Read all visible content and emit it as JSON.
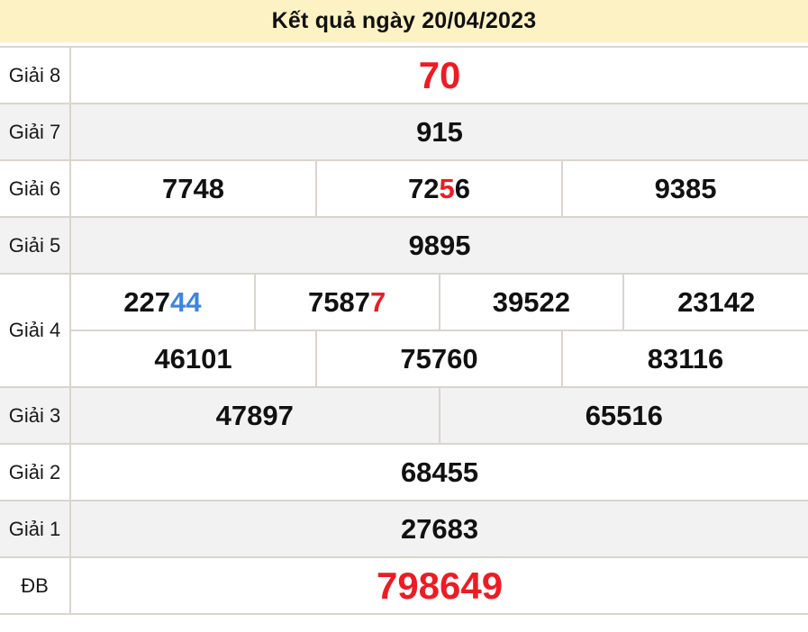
{
  "header": {
    "title": "Kết quả ngày 20/04/2023"
  },
  "colors": {
    "header_bg": "#fdf2c3",
    "row_shade_bg": "#f2f2f2",
    "border": "#d9d5ce",
    "red": "#ed1c24",
    "blue": "#3c85e0",
    "text": "#111111"
  },
  "table": {
    "label_column_header": "",
    "rows": [
      {
        "label": "Giải 8",
        "shade": false,
        "big": true,
        "cells": [
          [
            {
              "t": "70",
              "c": "red"
            }
          ]
        ]
      },
      {
        "label": "Giải 7",
        "shade": true,
        "cells": [
          [
            {
              "t": "915"
            }
          ]
        ]
      },
      {
        "label": "Giải 6",
        "shade": false,
        "cells": [
          [
            {
              "t": "7748"
            }
          ],
          [
            {
              "t": "72"
            },
            {
              "t": "5",
              "c": "red"
            },
            {
              "t": "6"
            }
          ],
          [
            {
              "t": "9385"
            }
          ]
        ]
      },
      {
        "label": "Giải 5",
        "shade": true,
        "cells": [
          [
            {
              "t": "9895"
            }
          ]
        ]
      },
      {
        "label": "Giải 4",
        "label_rowspan": 2,
        "shade": false,
        "cells": [
          [
            {
              "t": "227"
            },
            {
              "t": "44",
              "c": "blue"
            }
          ],
          [
            {
              "t": "7587"
            },
            {
              "t": "7",
              "c": "red"
            }
          ],
          [
            {
              "t": "39522"
            }
          ],
          [
            {
              "t": "23142"
            }
          ]
        ]
      },
      {
        "label": null,
        "shade": false,
        "cells": [
          [
            {
              "t": "46101"
            }
          ],
          [
            {
              "t": "75760"
            }
          ],
          [
            {
              "t": "83116"
            }
          ]
        ]
      },
      {
        "label": "Giải 3",
        "shade": true,
        "cells": [
          [
            {
              "t": "47897"
            }
          ],
          [
            {
              "t": "65516"
            }
          ]
        ]
      },
      {
        "label": "Giải 2",
        "shade": false,
        "cells": [
          [
            {
              "t": "68455"
            }
          ]
        ]
      },
      {
        "label": "Giải 1",
        "shade": true,
        "cells": [
          [
            {
              "t": "27683"
            }
          ]
        ]
      },
      {
        "label": "ĐB",
        "shade": false,
        "big": true,
        "cells": [
          [
            {
              "t": "798649",
              "c": "red"
            }
          ]
        ]
      }
    ]
  }
}
